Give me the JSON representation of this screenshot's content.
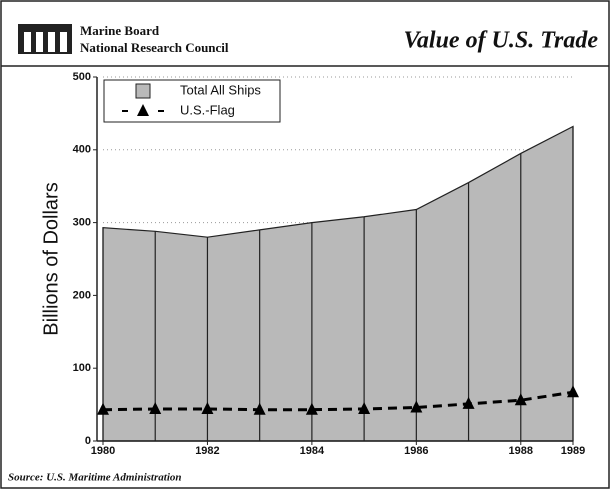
{
  "header": {
    "org_line1": "Marine Board",
    "org_line2": "National Research Council"
  },
  "chart_data": {
    "type": "area",
    "title": "Value of U.S. Trade",
    "y_label": "Billions of Dollars",
    "source": "Source: U.S. Maritime Administration",
    "x": [
      1980,
      1981,
      1982,
      1983,
      1984,
      1985,
      1986,
      1987,
      1988,
      1989
    ],
    "series": [
      {
        "name": "Total All Ships",
        "type": "area",
        "color": "#b9b9b9",
        "values": [
          293,
          288,
          280,
          290,
          300,
          308,
          318,
          355,
          395,
          432
        ]
      },
      {
        "name": "U.S.-Flag",
        "type": "line",
        "color": "#000000",
        "linestyle": "dashed",
        "marker": "triangle",
        "values": [
          43,
          44,
          44,
          43,
          43,
          44,
          46,
          51,
          56,
          67
        ]
      }
    ],
    "xlim": [
      1980,
      1989
    ],
    "xticks": [
      1980,
      1982,
      1984,
      1986,
      1988,
      1989
    ],
    "ylim": [
      0,
      500
    ],
    "yticks": [
      0,
      100,
      200,
      300,
      400,
      500
    ],
    "grid": true,
    "legend": "upper left"
  }
}
